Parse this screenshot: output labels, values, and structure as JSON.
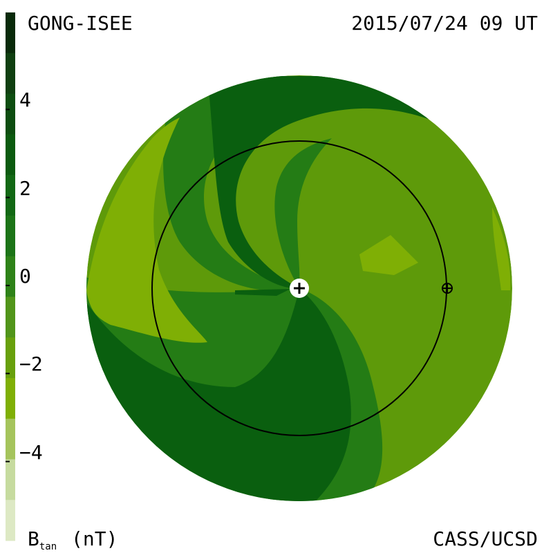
{
  "header": {
    "source": "GONG-ISEE",
    "timestamp": "2015/07/24 09 UT"
  },
  "footer": {
    "credit": "CASS/UCSD",
    "unit_main": "B",
    "unit_sub": "tan",
    "unit_suffix": "(nT)"
  },
  "colorbar": {
    "colors": [
      "#092a0a",
      "#0f3f10",
      "#0d4d10",
      "#0b5a0f",
      "#126814",
      "#1c7417",
      "#2e8218",
      "#51951a",
      "#68a00c",
      "#7faf05",
      "#a5c45c",
      "#c6db9f",
      "#dde9c4"
    ],
    "ticks": [
      {
        "value": 4,
        "label": "4"
      },
      {
        "value": 2,
        "label": "2"
      },
      {
        "value": 0,
        "label": "0"
      },
      {
        "value": -2,
        "label": "−2"
      },
      {
        "value": -4,
        "label": "−4"
      }
    ],
    "range": [
      -6,
      6
    ]
  },
  "colors": {
    "disk_base": "#5e9a0a",
    "dark_green": "#0a5f0f",
    "medium_green": "#247c15",
    "light_green": "#7faf05"
  },
  "markers": {
    "sun_icon": "plus-in-white-circle",
    "earth_icon": "circle-with-cross"
  }
}
